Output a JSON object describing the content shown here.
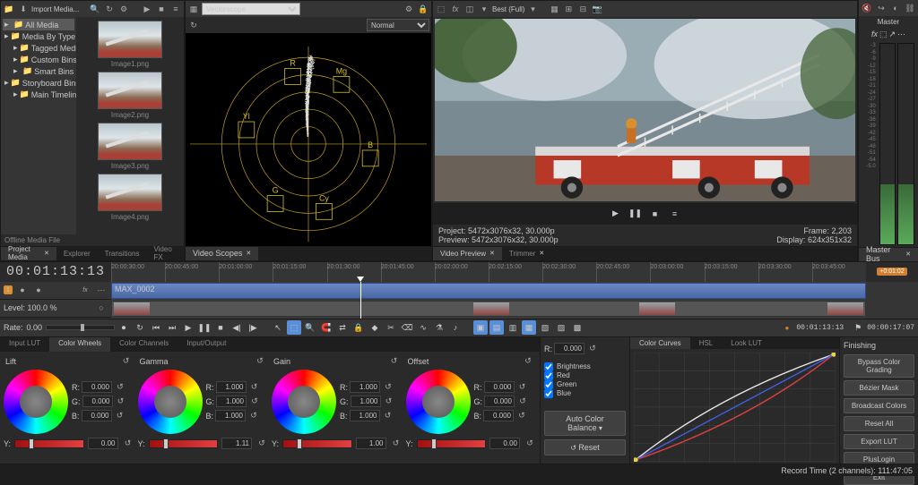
{
  "projectMedia": {
    "importLabel": "Import Media...",
    "tree": [
      {
        "label": "All Media",
        "selected": true,
        "icon": "folder"
      },
      {
        "label": "Media By Type",
        "icon": "folder",
        "indent": 0
      },
      {
        "label": "Tagged Media",
        "icon": "folder",
        "indent": 1
      },
      {
        "label": "Custom Bins",
        "icon": "folder",
        "indent": 1
      },
      {
        "label": "Smart Bins",
        "icon": "folder",
        "indent": 1
      },
      {
        "label": "Storyboard Bins",
        "icon": "folder",
        "indent": 0
      },
      {
        "label": "Main Timeline",
        "icon": "film",
        "indent": 1
      }
    ],
    "thumbs": [
      "Image1.png",
      "Image2.png",
      "Image3.png",
      "Image4.png"
    ],
    "status": "Offline Media File"
  },
  "bottomTabs1": [
    {
      "label": "Project Media",
      "active": true
    },
    {
      "label": "Explorer",
      "active": false
    },
    {
      "label": "Transitions",
      "active": false
    },
    {
      "label": "Video FX",
      "active": false
    }
  ],
  "scopes": {
    "dropdown": "Vectorscope",
    "modeDropdown": "Normal",
    "tab": "Video Scopes",
    "circles": [
      30,
      60,
      90,
      120,
      150
    ],
    "targets": [
      {
        "label": "R",
        "ang": 103,
        "r": 120,
        "color": "#d4c020"
      },
      {
        "label": "Mg",
        "ang": 61,
        "r": 118,
        "color": "#d4c020"
      },
      {
        "label": "B",
        "ang": 347,
        "r": 110,
        "color": "#d4c020"
      },
      {
        "label": "Cy",
        "ang": 283,
        "r": 120,
        "color": "#d4c020"
      },
      {
        "label": "G",
        "ang": 241,
        "r": 118,
        "color": "#d4c020"
      },
      {
        "label": "Yl",
        "ang": 167,
        "r": 110,
        "color": "#d4c020"
      }
    ]
  },
  "preview": {
    "qualityLabel": "Best (Full)",
    "info": {
      "projectLabel": "Project:",
      "projectVal": "5472x3076x32, 30.000p",
      "previewLabel": "Preview:",
      "previewVal": "5472x3076x32, 30.000p",
      "frameLabel": "Frame:",
      "frameVal": "2,203",
      "displayLabel": "Display:",
      "displayVal": "624x351x32"
    },
    "tabs": [
      {
        "label": "Video Preview",
        "active": true
      },
      {
        "label": "Trimmer",
        "active": false
      }
    ]
  },
  "master": {
    "title": "Master",
    "scale": [
      "-3",
      "-6",
      "-9",
      "-12",
      "-15",
      "-18",
      "-21",
      "-24",
      "-27",
      "-30",
      "-33",
      "-36",
      "-39",
      "-42",
      "-45",
      "-48",
      "-51",
      "-54",
      "-5.0"
    ],
    "tab": "Master Bus"
  },
  "timeline": {
    "timecode": "00:01:13:13",
    "rulerStart": "20:00:30:00",
    "rulerStep": "00:00:15:00",
    "rulerTicks": [
      "20:00:30:00",
      "20:00:45:00",
      "20:01:00:00",
      "20:01:15:00",
      "20:01:30:00",
      "20:01:45:00",
      "20:02:00:00",
      "20:02:15:00",
      "20:02:30:00",
      "20:02:45:00",
      "20:03:00:00",
      "20:03:15:00",
      "20:03:30:00",
      "20:03:45:00"
    ],
    "track1": {
      "name": "MAX_0002",
      "badge": "M"
    },
    "track2": {
      "level": "Level: 100.0 %"
    },
    "clipName": "MAX_0002",
    "rateLabel": "Rate:",
    "rateVal": "0.00",
    "rightTC1": "00:01:13:13",
    "rightTC2": "00:00:17:07",
    "zoomBadge": "+0:01:02"
  },
  "colorGrading": {
    "leftTabs": [
      "Input LUT",
      "Color Wheels",
      "Color Channels",
      "Input/Output"
    ],
    "activeLeftTab": 1,
    "wheels": [
      {
        "name": "Lift",
        "r": "0.000",
        "g": "0.000",
        "b": "0.000",
        "y": "0.00"
      },
      {
        "name": "Gamma",
        "r": "1.000",
        "g": "1.000",
        "b": "1.000",
        "y": "1.11"
      },
      {
        "name": "Gain",
        "r": "1.000",
        "g": "1.000",
        "b": "1.000",
        "y": "1.00"
      },
      {
        "name": "Offset",
        "r": "0.000",
        "g": "0.000",
        "b": "0.000",
        "y": "0.00"
      }
    ],
    "mid": {
      "rVal": "0.000",
      "checks": [
        "Brightness",
        "Red",
        "Green",
        "Blue"
      ],
      "autoLabel": "Auto Color Balance",
      "resetLabel": "Reset"
    },
    "curveTabs": [
      "Color Curves",
      "HSL",
      "Look LUT"
    ],
    "curvesColors": {
      "grid": "#444",
      "white": "#e8e8e8",
      "red": "#e04040",
      "blue": "#4060e0",
      "handle": "#e8d040"
    }
  },
  "finishing": {
    "title": "Finishing",
    "buttons": [
      "Bypass Color Grading",
      "Bézier Mask",
      "Broadcast Colors",
      "Reset All",
      "Export LUT",
      "PlusLogin",
      "Exit"
    ]
  },
  "statusbar": "Record Time (2 channels): 111:47:05"
}
